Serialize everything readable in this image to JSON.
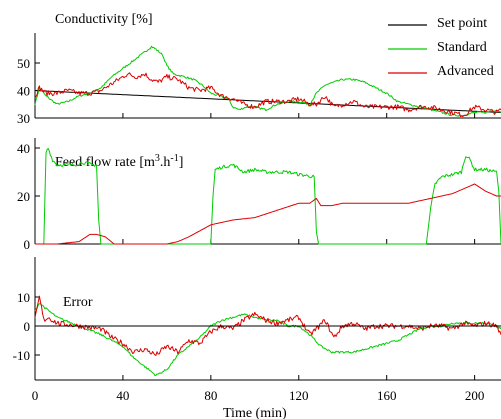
{
  "colors": {
    "setpoint": "#000000",
    "standard": "#00cc00",
    "advanced": "#dd0000",
    "axis": "#000000"
  },
  "legend": {
    "setpoint": "Set point",
    "standard": "Standard",
    "advanced": "Advanced"
  },
  "xaxis": {
    "label": "Time  (min)",
    "ticks": [
      "0",
      "40",
      "80",
      "120",
      "160",
      "200"
    ],
    "range": [
      0,
      212
    ]
  },
  "chart_data": [
    {
      "type": "line",
      "title": "Conductivity [%]",
      "xlabel": "Time  (min)",
      "ylim": [
        30,
        56
      ],
      "yticks": [
        "30",
        "40",
        "50"
      ],
      "legend_position": "top-right",
      "series": [
        {
          "name": "Set point",
          "color": "#000000",
          "x": [
            0,
            212
          ],
          "y": [
            40,
            32
          ]
        },
        {
          "name": "Standard",
          "color": "#00cc00",
          "x": [
            0,
            2,
            5,
            10,
            15,
            20,
            25,
            30,
            35,
            40,
            45,
            50,
            53,
            55,
            58,
            60,
            63,
            68,
            72,
            76,
            80,
            84,
            88,
            90,
            93,
            96,
            100,
            105,
            110,
            115,
            120,
            125,
            128,
            132,
            136,
            140,
            145,
            150,
            155,
            160,
            165,
            170,
            175,
            180,
            185,
            190,
            195,
            200,
            205,
            210,
            212
          ],
          "y": [
            35,
            41,
            38,
            35,
            36,
            38,
            39,
            41,
            45,
            48,
            51,
            54,
            56,
            55,
            53,
            49,
            46,
            45,
            44,
            42,
            39,
            38,
            37,
            34,
            33,
            34,
            34,
            33,
            35,
            36,
            36,
            35,
            39,
            42,
            43,
            44,
            44,
            43,
            41,
            39,
            36,
            35,
            34,
            33,
            32,
            31,
            31,
            32,
            32,
            33,
            32
          ]
        },
        {
          "name": "Advanced",
          "color": "#dd0000",
          "x": [
            0,
            2,
            5,
            10,
            15,
            20,
            25,
            30,
            34,
            38,
            42,
            46,
            50,
            53,
            56,
            60,
            65,
            70,
            75,
            80,
            85,
            90,
            95,
            100,
            105,
            110,
            115,
            120,
            125,
            128,
            132,
            136,
            140,
            145,
            150,
            155,
            160,
            165,
            170,
            175,
            180,
            185,
            190,
            195,
            200,
            205,
            210,
            212
          ],
          "y": [
            38,
            41,
            39,
            39,
            40,
            39,
            39,
            40,
            42,
            44,
            46,
            45,
            46,
            44,
            43,
            45,
            44,
            41,
            40,
            41,
            38,
            37,
            35,
            34,
            36,
            36,
            36,
            37,
            35,
            35,
            38,
            34,
            35,
            36,
            34,
            34,
            34,
            34,
            33,
            34,
            34,
            33,
            32,
            31,
            34,
            33,
            32,
            33
          ]
        }
      ]
    },
    {
      "type": "line",
      "title": "Feed flow rate [m³.h⁻¹]",
      "ylim": [
        0,
        44
      ],
      "yticks": [
        "0",
        "20",
        "40"
      ],
      "series": [
        {
          "name": "Standard",
          "color": "#00cc00",
          "x": [
            0,
            4,
            5,
            6,
            8,
            10,
            14,
            18,
            22,
            26,
            28,
            29,
            30,
            50,
            70,
            80,
            81,
            82,
            85,
            90,
            95,
            100,
            105,
            110,
            115,
            120,
            127,
            128,
            129,
            150,
            170,
            178,
            180,
            182,
            185,
            190,
            194,
            196,
            198,
            200,
            205,
            210,
            211,
            212
          ],
          "y": [
            0,
            0,
            38,
            40,
            35,
            33,
            33,
            33,
            34,
            33,
            33,
            10,
            0,
            0,
            0,
            0,
            20,
            31,
            32,
            33,
            30,
            31,
            30,
            30,
            30,
            29,
            28,
            5,
            0,
            0,
            0,
            0,
            15,
            25,
            28,
            29,
            30,
            37,
            35,
            31,
            31,
            30,
            22,
            0
          ]
        },
        {
          "name": "Advanced",
          "color": "#dd0000",
          "x": [
            0,
            10,
            20,
            25,
            28,
            32,
            36,
            40,
            50,
            60,
            65,
            70,
            80,
            90,
            100,
            110,
            120,
            125,
            128,
            130,
            135,
            140,
            150,
            160,
            170,
            175,
            180,
            185,
            190,
            195,
            200,
            205,
            210,
            212
          ],
          "y": [
            0,
            0,
            1,
            4,
            4,
            3,
            0,
            0,
            0,
            0,
            1,
            3,
            8,
            10,
            11,
            14,
            17,
            17,
            19,
            16,
            16,
            17,
            17,
            17,
            17,
            18,
            19,
            20,
            21,
            23,
            25,
            22,
            20,
            20
          ]
        }
      ]
    },
    {
      "type": "line",
      "title": "Error",
      "ylim": [
        -18,
        11
      ],
      "yticks": [
        "-10",
        "0",
        "10"
      ],
      "series": [
        {
          "name": "Standard",
          "color": "#00cc00",
          "x": [
            0,
            2,
            5,
            10,
            20,
            30,
            40,
            45,
            50,
            55,
            60,
            65,
            70,
            75,
            80,
            85,
            90,
            95,
            100,
            105,
            110,
            115,
            120,
            125,
            130,
            135,
            140,
            145,
            150,
            155,
            160,
            165,
            170,
            175,
            180,
            185,
            190,
            195,
            200,
            205,
            210,
            212
          ],
          "y": [
            5,
            8,
            6,
            3,
            0,
            -3,
            -7,
            -11,
            -14,
            -17,
            -15,
            -10,
            -7,
            -4,
            0,
            2,
            3,
            4,
            3,
            2,
            2,
            0,
            0,
            -3,
            -7,
            -9,
            -9,
            -9,
            -8,
            -7,
            -6,
            -5,
            -3,
            -1,
            0,
            0,
            1,
            1,
            1,
            1,
            0,
            -1
          ]
        },
        {
          "name": "Advanced",
          "color": "#dd0000",
          "x": [
            0,
            2,
            4,
            6,
            10,
            20,
            30,
            35,
            40,
            45,
            50,
            55,
            60,
            65,
            70,
            75,
            80,
            85,
            90,
            95,
            100,
            105,
            110,
            115,
            120,
            125,
            128,
            132,
            136,
            140,
            145,
            150,
            155,
            160,
            165,
            170,
            175,
            180,
            185,
            190,
            195,
            200,
            205,
            210,
            212
          ],
          "y": [
            2,
            10,
            2,
            3,
            1,
            0,
            -1,
            -4,
            -6,
            -9,
            -8,
            -10,
            -7,
            -9,
            -5,
            -6,
            -2,
            0,
            -1,
            2,
            4,
            2,
            1,
            2,
            3,
            -3,
            -1,
            2,
            -4,
            0,
            1,
            -1,
            0,
            0,
            0,
            0,
            -1,
            0,
            0,
            -1,
            1,
            0,
            1,
            0,
            -3
          ]
        },
        {
          "name": "Set point",
          "color": "#000000",
          "x": [
            0,
            212
          ],
          "y": [
            0,
            0
          ]
        }
      ]
    }
  ]
}
